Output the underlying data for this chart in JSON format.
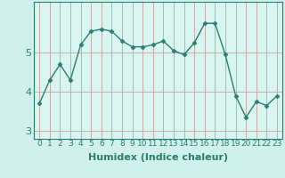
{
  "x": [
    0,
    1,
    2,
    3,
    4,
    5,
    6,
    7,
    8,
    9,
    10,
    11,
    12,
    13,
    14,
    15,
    16,
    17,
    18,
    19,
    20,
    21,
    22,
    23
  ],
  "y": [
    3.7,
    4.3,
    4.7,
    4.3,
    5.2,
    5.55,
    5.6,
    5.55,
    5.3,
    5.15,
    5.15,
    5.2,
    5.3,
    5.05,
    4.95,
    5.25,
    5.75,
    5.75,
    4.95,
    3.9,
    3.35,
    3.75,
    3.65,
    3.9
  ],
  "line_color": "#2a7d6f",
  "marker": "D",
  "marker_size": 2.5,
  "line_width": 1.0,
  "xlabel": "Humidex (Indice chaleur)",
  "xlabel_fontsize": 8,
  "xlabel_fontweight": "bold",
  "bg_color": "#cff0eb",
  "plot_bg_color": "#d8f5f0",
  "grid_color_x": "#c8a0a0",
  "grid_color_y": "#c8a0a0",
  "ylim": [
    2.8,
    6.3
  ],
  "xlim": [
    -0.5,
    23.5
  ],
  "yticks": [
    3,
    4,
    5
  ],
  "xticks": [
    0,
    1,
    2,
    3,
    4,
    5,
    6,
    7,
    8,
    9,
    10,
    11,
    12,
    13,
    14,
    15,
    16,
    17,
    18,
    19,
    20,
    21,
    22,
    23
  ],
  "tick_fontsize": 6.5,
  "ytick_fontsize": 8
}
